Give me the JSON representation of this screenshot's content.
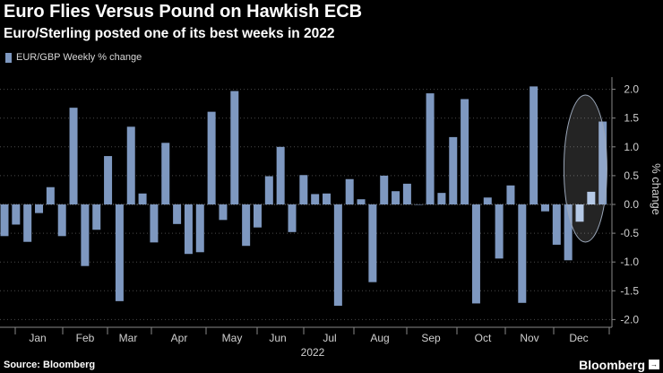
{
  "header": {
    "title": "Euro Flies Versus Pound on Hawkish ECB",
    "subtitle": "Euro/Sterling posted one of its best weeks in 2022"
  },
  "footer": {
    "source": "Source: Bloomberg",
    "brand": "Bloomberg",
    "brand_mark": "→"
  },
  "colors": {
    "bar": "#7e98c0",
    "highlight_bar": "#a9c0e2",
    "grid": "#4a4a4a",
    "axis_text": "#d0d0d0"
  },
  "chart_data": {
    "type": "bar",
    "title": "Euro Flies Versus Pound on Hawkish ECB",
    "subtitle": "Euro/Sterling posted one of its best weeks in 2022",
    "xlabel": "2022",
    "ylabel": "% change",
    "ylim": [
      -2.2,
      2.3
    ],
    "yticks": [
      2.0,
      1.5,
      1.0,
      0.5,
      0.0,
      -0.5,
      -1.0,
      -1.5,
      -2.0
    ],
    "ytick_labels": [
      "2.0",
      "1.5",
      "1.0",
      "0.5",
      "0.0",
      "-0.5",
      "-1.0",
      "-1.5",
      "-2.0"
    ],
    "y_axis_position": "right",
    "grid": true,
    "legend": "top-left",
    "month_labels": [
      "Jan",
      "Feb",
      "Mar",
      "Apr",
      "May",
      "Jun",
      "Jul",
      "Aug",
      "Sep",
      "Oct",
      "Nov",
      "Dec"
    ],
    "highlight": {
      "weeks": [
        50,
        51
      ],
      "annotation": "ellipse"
    },
    "series": [
      {
        "name": "EUR/GBP Weekly % change",
        "values": [
          -0.55,
          -0.35,
          -0.65,
          -0.15,
          0.3,
          -0.55,
          1.68,
          -1.07,
          -0.44,
          0.84,
          -1.68,
          1.35,
          0.19,
          -0.66,
          1.07,
          -0.34,
          -0.86,
          -0.83,
          1.61,
          -0.27,
          1.97,
          -0.72,
          -0.4,
          0.49,
          1.0,
          -0.48,
          0.51,
          0.18,
          0.19,
          -1.76,
          0.44,
          0.09,
          -1.35,
          0.5,
          0.23,
          0.36,
          0.0,
          1.93,
          0.2,
          1.17,
          1.83,
          -1.72,
          0.12,
          -0.94,
          0.33,
          -1.71,
          2.05,
          -0.12,
          -0.7,
          -0.97,
          -0.3,
          0.22,
          1.44
        ]
      }
    ]
  }
}
